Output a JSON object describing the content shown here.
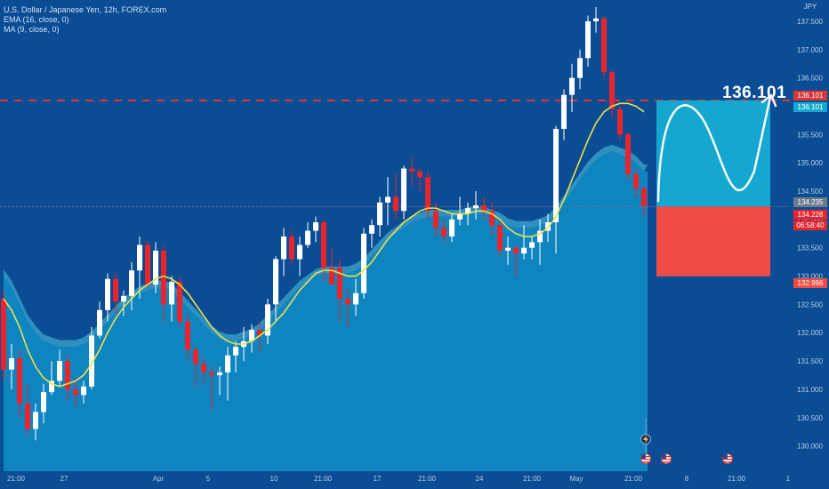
{
  "header": {
    "title": "U.S. Dollar / Japanese Yen, 12h, FOREX.com",
    "indicator_1": "EMA (16, close, 0)",
    "indicator_2": "MA (9, close, 0)",
    "currency": "JPY"
  },
  "annotation": {
    "target_label": "136.101"
  },
  "price_tags": {
    "target": "136.101",
    "target_2": "136.101",
    "prev": "134.235",
    "last": "134.228",
    "countdown": "06:58:40",
    "stop": "132.996"
  },
  "colors": {
    "background": "#0a4d94",
    "up_candle": "#ffffff",
    "down_candle": "#e8242c",
    "ema_line": "#e8e04a",
    "ma_band": "#0f85c0",
    "ma_band_edge": "#4fc7e0",
    "target_box": "#14a8d0",
    "stop_box": "#f04b45",
    "dashed_line": "#d93636"
  },
  "events": [
    {
      "icon": "lightning-icon"
    },
    {
      "icon": "us-flag-icon"
    },
    {
      "icon": "us-flag-icon"
    },
    {
      "icon": "us-flag-icon"
    }
  ],
  "chart_data": {
    "type": "candlestick",
    "title": "U.S. Dollar / Japanese Yen, 12h, FOREX.com",
    "yaxis_unit": "JPY",
    "ylim": [
      129.9,
      137.75
    ],
    "y_ticks": [
      "137.500",
      "137.000",
      "136.500",
      "136.000",
      "135.500",
      "135.000",
      "134.500",
      "134.000",
      "133.500",
      "133.000",
      "132.500",
      "132.000",
      "131.500",
      "131.000",
      "130.500",
      "130.000"
    ],
    "x_ticks": [
      "21:00",
      "27",
      "Apr",
      "5",
      "10",
      "21:00",
      "17",
      "21:00",
      "24",
      "21:00",
      "May",
      "21:00",
      "8",
      "21:00",
      "1"
    ],
    "candles": [
      {
        "o": 132.6,
        "h": 132.75,
        "l": 131.15,
        "c": 131.35
      },
      {
        "o": 131.35,
        "h": 131.8,
        "l": 131.0,
        "c": 131.55
      },
      {
        "o": 131.55,
        "h": 131.7,
        "l": 130.5,
        "c": 130.75
      },
      {
        "o": 130.75,
        "h": 131.1,
        "l": 130.2,
        "c": 130.3
      },
      {
        "o": 130.3,
        "h": 130.75,
        "l": 130.1,
        "c": 130.6
      },
      {
        "o": 130.6,
        "h": 131.1,
        "l": 130.4,
        "c": 130.95
      },
      {
        "o": 130.95,
        "h": 131.5,
        "l": 130.9,
        "c": 131.15
      },
      {
        "o": 131.15,
        "h": 131.7,
        "l": 131.05,
        "c": 131.5
      },
      {
        "o": 131.5,
        "h": 131.6,
        "l": 130.8,
        "c": 131.0
      },
      {
        "o": 131.0,
        "h": 131.2,
        "l": 130.7,
        "c": 130.9
      },
      {
        "o": 130.9,
        "h": 131.15,
        "l": 130.75,
        "c": 131.05
      },
      {
        "o": 131.05,
        "h": 132.1,
        "l": 131.0,
        "c": 131.95
      },
      {
        "o": 131.95,
        "h": 132.55,
        "l": 131.9,
        "c": 132.4
      },
      {
        "o": 132.4,
        "h": 133.05,
        "l": 132.2,
        "c": 132.95
      },
      {
        "o": 132.95,
        "h": 133.05,
        "l": 132.35,
        "c": 132.55
      },
      {
        "o": 132.55,
        "h": 132.75,
        "l": 132.3,
        "c": 132.65
      },
      {
        "o": 132.65,
        "h": 133.25,
        "l": 132.4,
        "c": 133.1
      },
      {
        "o": 133.1,
        "h": 133.7,
        "l": 132.6,
        "c": 133.55
      },
      {
        "o": 133.55,
        "h": 133.65,
        "l": 132.8,
        "c": 132.85
      },
      {
        "o": 132.85,
        "h": 133.6,
        "l": 132.7,
        "c": 133.45
      },
      {
        "o": 133.45,
        "h": 133.55,
        "l": 132.2,
        "c": 132.5
      },
      {
        "o": 132.5,
        "h": 133.0,
        "l": 132.2,
        "c": 132.9
      },
      {
        "o": 132.9,
        "h": 133.0,
        "l": 132.1,
        "c": 132.2
      },
      {
        "o": 132.2,
        "h": 132.35,
        "l": 131.5,
        "c": 131.7
      },
      {
        "o": 131.7,
        "h": 131.75,
        "l": 131.05,
        "c": 131.45
      },
      {
        "o": 131.45,
        "h": 131.55,
        "l": 131.1,
        "c": 131.3
      },
      {
        "o": 131.3,
        "h": 131.4,
        "l": 130.65,
        "c": 131.25
      },
      {
        "o": 131.25,
        "h": 131.4,
        "l": 130.9,
        "c": 131.3
      },
      {
        "o": 131.3,
        "h": 131.75,
        "l": 130.8,
        "c": 131.6
      },
      {
        "o": 131.6,
        "h": 131.85,
        "l": 131.3,
        "c": 131.75
      },
      {
        "o": 131.75,
        "h": 132.1,
        "l": 131.5,
        "c": 131.85
      },
      {
        "o": 131.85,
        "h": 132.15,
        "l": 131.65,
        "c": 132.05
      },
      {
        "o": 132.05,
        "h": 132.2,
        "l": 131.65,
        "c": 131.95
      },
      {
        "o": 131.95,
        "h": 132.6,
        "l": 131.8,
        "c": 132.5
      },
      {
        "o": 132.5,
        "h": 133.35,
        "l": 132.2,
        "c": 133.3
      },
      {
        "o": 133.3,
        "h": 133.85,
        "l": 133.0,
        "c": 133.7
      },
      {
        "o": 133.7,
        "h": 133.8,
        "l": 133.2,
        "c": 133.3
      },
      {
        "o": 133.3,
        "h": 133.7,
        "l": 133.0,
        "c": 133.55
      },
      {
        "o": 133.55,
        "h": 133.95,
        "l": 133.5,
        "c": 133.8
      },
      {
        "o": 133.8,
        "h": 134.05,
        "l": 133.6,
        "c": 133.95
      },
      {
        "o": 133.95,
        "h": 134.0,
        "l": 132.9,
        "c": 133.15
      },
      {
        "o": 133.15,
        "h": 133.5,
        "l": 132.9,
        "c": 132.85
      },
      {
        "o": 133.15,
        "h": 133.3,
        "l": 132.2,
        "c": 132.6
      },
      {
        "o": 132.6,
        "h": 132.8,
        "l": 132.1,
        "c": 132.5
      },
      {
        "o": 132.5,
        "h": 132.95,
        "l": 132.3,
        "c": 132.7
      },
      {
        "o": 132.7,
        "h": 133.85,
        "l": 132.6,
        "c": 133.75
      },
      {
        "o": 133.75,
        "h": 134.0,
        "l": 133.5,
        "c": 133.9
      },
      {
        "o": 133.9,
        "h": 134.4,
        "l": 133.7,
        "c": 134.3
      },
      {
        "o": 134.3,
        "h": 134.75,
        "l": 133.9,
        "c": 134.4
      },
      {
        "o": 134.4,
        "h": 134.8,
        "l": 134.0,
        "c": 134.15
      },
      {
        "o": 134.15,
        "h": 134.95,
        "l": 134.0,
        "c": 134.9
      },
      {
        "o": 134.9,
        "h": 135.1,
        "l": 134.6,
        "c": 134.85
      },
      {
        "o": 134.85,
        "h": 134.9,
        "l": 134.5,
        "c": 134.75
      },
      {
        "o": 134.75,
        "h": 134.85,
        "l": 134.0,
        "c": 134.15
      },
      {
        "o": 134.15,
        "h": 134.3,
        "l": 133.7,
        "c": 133.85
      },
      {
        "o": 133.85,
        "h": 134.0,
        "l": 133.6,
        "c": 133.7
      },
      {
        "o": 133.7,
        "h": 134.1,
        "l": 133.6,
        "c": 134.0
      },
      {
        "o": 134.0,
        "h": 134.4,
        "l": 133.9,
        "c": 134.1
      },
      {
        "o": 134.1,
        "h": 134.3,
        "l": 133.9,
        "c": 134.2
      },
      {
        "o": 134.2,
        "h": 134.5,
        "l": 134.0,
        "c": 134.25
      },
      {
        "o": 134.25,
        "h": 134.4,
        "l": 134.0,
        "c": 134.15
      },
      {
        "o": 134.15,
        "h": 134.3,
        "l": 133.7,
        "c": 133.9
      },
      {
        "o": 133.9,
        "h": 134.0,
        "l": 133.35,
        "c": 133.45
      },
      {
        "o": 133.45,
        "h": 133.7,
        "l": 133.2,
        "c": 133.5
      },
      {
        "o": 133.5,
        "h": 133.55,
        "l": 133.0,
        "c": 133.4
      },
      {
        "o": 133.4,
        "h": 133.9,
        "l": 133.3,
        "c": 133.5
      },
      {
        "o": 133.5,
        "h": 133.7,
        "l": 133.3,
        "c": 133.6
      },
      {
        "o": 133.6,
        "h": 134.0,
        "l": 133.2,
        "c": 133.8
      },
      {
        "o": 133.8,
        "h": 134.1,
        "l": 133.6,
        "c": 133.95
      },
      {
        "o": 133.95,
        "h": 135.65,
        "l": 133.4,
        "c": 135.6
      },
      {
        "o": 135.6,
        "h": 136.3,
        "l": 135.4,
        "c": 136.2
      },
      {
        "o": 136.2,
        "h": 136.75,
        "l": 135.9,
        "c": 136.5
      },
      {
        "o": 136.5,
        "h": 137.0,
        "l": 136.3,
        "c": 136.85
      },
      {
        "o": 136.85,
        "h": 137.6,
        "l": 136.7,
        "c": 137.5
      },
      {
        "o": 137.5,
        "h": 137.75,
        "l": 137.3,
        "c": 137.55
      },
      {
        "o": 137.55,
        "h": 137.6,
        "l": 136.5,
        "c": 136.6
      },
      {
        "o": 136.6,
        "h": 136.65,
        "l": 135.8,
        "c": 135.95
      },
      {
        "o": 135.95,
        "h": 136.0,
        "l": 135.4,
        "c": 135.5
      },
      {
        "o": 135.5,
        "h": 135.55,
        "l": 134.7,
        "c": 134.8
      },
      {
        "o": 134.8,
        "h": 134.9,
        "l": 134.4,
        "c": 134.55
      },
      {
        "o": 134.55,
        "h": 134.6,
        "l": 134.05,
        "c": 134.23
      }
    ],
    "ema": [
      132.6,
      132.4,
      132.1,
      131.7,
      131.4,
      131.2,
      131.1,
      131.05,
      131.1,
      131.15,
      131.25,
      131.45,
      131.7,
      132.0,
      132.25,
      132.45,
      132.6,
      132.75,
      132.85,
      132.95,
      133.0,
      132.95,
      132.85,
      132.7,
      132.5,
      132.3,
      132.1,
      131.95,
      131.85,
      131.8,
      131.8,
      131.85,
      131.95,
      132.05,
      132.2,
      132.35,
      132.55,
      132.75,
      132.9,
      133.05,
      133.1,
      133.1,
      133.05,
      133.0,
      133.0,
      133.1,
      133.25,
      133.45,
      133.65,
      133.8,
      133.95,
      134.05,
      134.15,
      134.2,
      134.2,
      134.15,
      134.1,
      134.1,
      134.1,
      134.15,
      134.15,
      134.1,
      134.0,
      133.85,
      133.75,
      133.7,
      133.7,
      133.75,
      133.85,
      134.05,
      134.35,
      134.7,
      135.05,
      135.4,
      135.7,
      135.9,
      136.0,
      136.05,
      136.05,
      136.0,
      135.9
    ],
    "ma_band": [
      133.0,
      132.8,
      132.5,
      132.2,
      132.0,
      131.85,
      131.8,
      131.75,
      131.75,
      131.75,
      131.8,
      131.9,
      132.05,
      132.2,
      132.35,
      132.5,
      132.6,
      132.7,
      132.75,
      132.8,
      132.8,
      132.75,
      132.6,
      132.45,
      132.3,
      132.15,
      132.0,
      131.9,
      131.85,
      131.85,
      131.9,
      131.95,
      132.05,
      132.2,
      132.35,
      132.5,
      132.65,
      132.8,
      132.9,
      133.0,
      133.05,
      133.05,
      133.05,
      133.05,
      133.1,
      133.2,
      133.35,
      133.5,
      133.65,
      133.75,
      133.85,
      133.95,
      134.0,
      134.05,
      134.05,
      134.05,
      134.05,
      134.05,
      134.1,
      134.1,
      134.1,
      134.05,
      134.0,
      133.9,
      133.85,
      133.85,
      133.85,
      133.9,
      133.95,
      134.1,
      134.3,
      134.5,
      134.7,
      134.9,
      135.05,
      135.15,
      135.2,
      135.15,
      135.1,
      135.0,
      134.85
    ],
    "ma_band_edge_offset": 0.12,
    "target_price": 136.101,
    "entry_price": 134.228,
    "stop_price": 132.996,
    "grid": false,
    "legend": "top-left"
  }
}
